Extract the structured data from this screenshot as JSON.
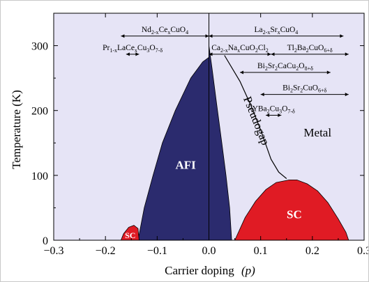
{
  "chart_data": {
    "type": "area",
    "title": "",
    "xlabel": "Carrier doping",
    "xlabel_var": "(p)",
    "ylabel": "Temperature (K)",
    "xlim": [
      -0.3,
      0.3
    ],
    "ylim": [
      0,
      350
    ],
    "xticks": [
      -0.3,
      -0.2,
      -0.1,
      0.0,
      0.1,
      0.2,
      0.3
    ],
    "xtick_labels": [
      "−0.3",
      "−0.2",
      "−0.1",
      "0.0",
      "0.1",
      "0.2",
      "0.3"
    ],
    "yticks": [
      0,
      100,
      200,
      300
    ],
    "ytick_labels": [
      "0",
      "100",
      "200",
      "300"
    ],
    "grid": false,
    "colors": {
      "background": "#e6e4f6",
      "afi": "#2b2b6e",
      "sc": "#e01b24",
      "line": "#000000"
    },
    "regions": [
      {
        "name": "AFI",
        "label": "AFI",
        "label_at": [
          -0.045,
          110
        ],
        "label_color": "#ffffff",
        "points": [
          [
            -0.137,
            0
          ],
          [
            -0.125,
            50
          ],
          [
            -0.108,
            100
          ],
          [
            -0.09,
            150
          ],
          [
            -0.065,
            200
          ],
          [
            -0.035,
            250
          ],
          [
            -0.012,
            275
          ],
          [
            0.0,
            282
          ],
          [
            0.0,
            300
          ],
          [
            0.006,
            265
          ],
          [
            0.015,
            210
          ],
          [
            0.025,
            150
          ],
          [
            0.033,
            100
          ],
          [
            0.04,
            50
          ],
          [
            0.044,
            0
          ]
        ]
      },
      {
        "name": "SC (hole-doped)",
        "label": "SC",
        "label_at": [
          0.165,
          34
        ],
        "label_color": "#ffffff",
        "points": [
          [
            0.05,
            0
          ],
          [
            0.07,
            35
          ],
          [
            0.09,
            60
          ],
          [
            0.11,
            78
          ],
          [
            0.13,
            89
          ],
          [
            0.155,
            93
          ],
          [
            0.17,
            93
          ],
          [
            0.19,
            87
          ],
          [
            0.21,
            76
          ],
          [
            0.23,
            58
          ],
          [
            0.25,
            33
          ],
          [
            0.265,
            12
          ],
          [
            0.27,
            0
          ]
        ]
      },
      {
        "name": "SC (electron-doped)",
        "label": "SC",
        "label_at": [
          -0.152,
          3
        ],
        "label_color": "#ffffff",
        "points": [
          [
            -0.17,
            0
          ],
          [
            -0.165,
            10
          ],
          [
            -0.155,
            20
          ],
          [
            -0.145,
            23
          ],
          [
            -0.137,
            18
          ],
          [
            -0.135,
            0
          ]
        ]
      }
    ],
    "pseudogap_line": {
      "points": [
        [
          0.03,
          285
        ],
        [
          0.06,
          245
        ],
        [
          0.08,
          210
        ],
        [
          0.1,
          170
        ],
        [
          0.12,
          125
        ],
        [
          0.135,
          105
        ],
        [
          0.15,
          95
        ]
      ]
    },
    "annotations": [
      {
        "text": "Pseudogap",
        "x": 0.085,
        "y": 182,
        "rotate": 68
      },
      {
        "text": "Metal",
        "x": 0.21,
        "y": 160,
        "rotate": 0
      }
    ],
    "doping_ranges": [
      {
        "parts": [
          "Nd",
          "2-x",
          "Ce",
          "x",
          "CuO",
          "4",
          "",
          ""
        ],
        "from": -0.17,
        "to": 0.0,
        "y": 318
      },
      {
        "parts": [
          "Pr",
          "1-x",
          "LaCe",
          "x",
          "Cu",
          "3",
          "O",
          "7-δ"
        ],
        "from": -0.16,
        "to": -0.135,
        "y": 290
      },
      {
        "parts": [
          "La",
          "2-x",
          "Sr",
          "x",
          "CuO",
          "4",
          "",
          ""
        ],
        "from": 0.0,
        "to": 0.26,
        "y": 318
      },
      {
        "parts": [
          "Ca",
          "2-x",
          "Na",
          "x",
          "CuO",
          "2",
          "Cl",
          "2"
        ],
        "from": 0.0,
        "to": 0.12,
        "y": 290
      },
      {
        "parts": [
          "Tl",
          "2",
          "Ba",
          "2",
          "CuO",
          "6+δ",
          "",
          ""
        ],
        "from": 0.12,
        "to": 0.27,
        "y": 290
      },
      {
        "parts": [
          "Bi",
          "2",
          "Sr",
          "2",
          "CaCu",
          "2",
          "O",
          "8+δ"
        ],
        "from": 0.06,
        "to": 0.235,
        "y": 262
      },
      {
        "parts": [
          "Bi",
          "2",
          "Sr",
          "2",
          "CuO",
          "6+δ",
          "",
          ""
        ],
        "from": 0.1,
        "to": 0.27,
        "y": 228
      },
      {
        "parts": [
          "YBa",
          "2",
          "Cu",
          "3",
          "O",
          "7-δ",
          "",
          ""
        ],
        "from": 0.11,
        "to": 0.14,
        "y": 196
      }
    ]
  }
}
